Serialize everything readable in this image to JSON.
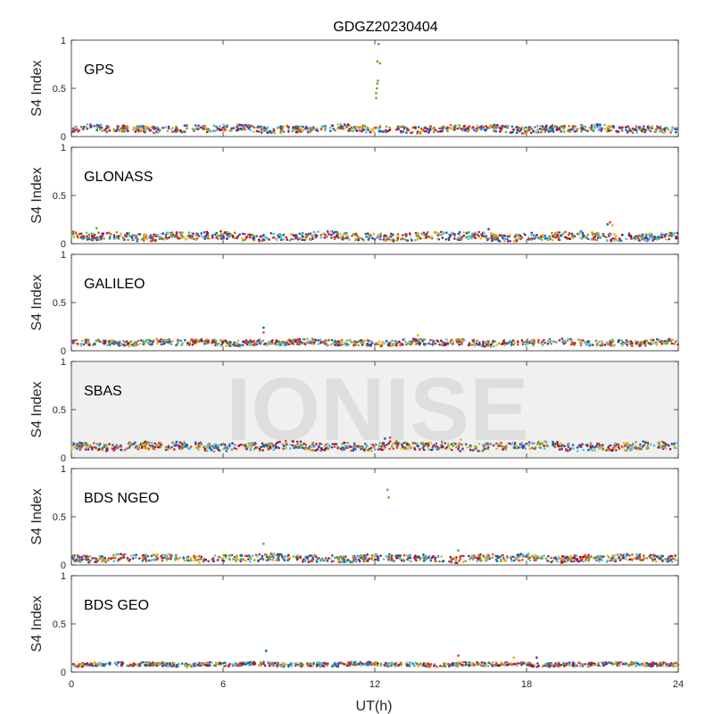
{
  "chart_data": {
    "type": "scatter",
    "title": "GDGZ20230404",
    "xlabel": "UT(h)",
    "ylabel": "S4 Index",
    "xlim": [
      0,
      24
    ],
    "ylim": [
      0,
      1
    ],
    "xticks": [
      0,
      6,
      12,
      18,
      24
    ],
    "yticks": [
      0,
      0.5,
      1
    ],
    "watermark": "IONISE",
    "palette": [
      "#0072BD",
      "#D95319",
      "#EDB120",
      "#7E2F8E",
      "#77AC30",
      "#4DBEEE",
      "#A2142F"
    ],
    "panels": [
      {
        "name": "GPS",
        "baseline": 0.08,
        "spread": 0.035,
        "highlight_band": false,
        "outliers": [
          {
            "x": 12.05,
            "y": 0.4
          },
          {
            "x": 12.05,
            "y": 0.45
          },
          {
            "x": 12.08,
            "y": 0.5
          },
          {
            "x": 12.1,
            "y": 0.55
          },
          {
            "x": 12.12,
            "y": 0.58
          },
          {
            "x": 12.1,
            "y": 0.78
          },
          {
            "x": 12.2,
            "y": 0.76
          },
          {
            "x": 12.15,
            "y": 0.96
          }
        ]
      },
      {
        "name": "GLONASS",
        "baseline": 0.075,
        "spread": 0.04,
        "highlight_band": false,
        "outliers": [
          {
            "x": 21.2,
            "y": 0.2
          },
          {
            "x": 21.3,
            "y": 0.22
          },
          {
            "x": 21.4,
            "y": 0.19
          },
          {
            "x": 16.5,
            "y": 0.15
          },
          {
            "x": 1.0,
            "y": 0.16
          }
        ]
      },
      {
        "name": "GALILEO",
        "baseline": 0.085,
        "spread": 0.03,
        "highlight_band": false,
        "outliers": [
          {
            "x": 7.6,
            "y": 0.24
          },
          {
            "x": 7.6,
            "y": 0.19
          },
          {
            "x": 13.7,
            "y": 0.16
          }
        ]
      },
      {
        "name": "SBAS",
        "baseline": 0.12,
        "spread": 0.04,
        "highlight_band": true,
        "outliers": [
          {
            "x": 12.4,
            "y": 0.2
          },
          {
            "x": 12.6,
            "y": 0.21
          },
          {
            "x": 15.4,
            "y": 0.19
          }
        ]
      },
      {
        "name": "BDS NGEO",
        "baseline": 0.07,
        "spread": 0.035,
        "highlight_band": false,
        "outliers": [
          {
            "x": 12.5,
            "y": 0.78
          },
          {
            "x": 12.55,
            "y": 0.7
          },
          {
            "x": 7.6,
            "y": 0.22
          },
          {
            "x": 15.3,
            "y": 0.15
          }
        ]
      },
      {
        "name": "BDS GEO",
        "baseline": 0.08,
        "spread": 0.02,
        "highlight_band": false,
        "outliers": [
          {
            "x": 7.7,
            "y": 0.22
          },
          {
            "x": 15.3,
            "y": 0.17
          },
          {
            "x": 17.5,
            "y": 0.15
          },
          {
            "x": 18.4,
            "y": 0.15
          }
        ]
      }
    ]
  }
}
